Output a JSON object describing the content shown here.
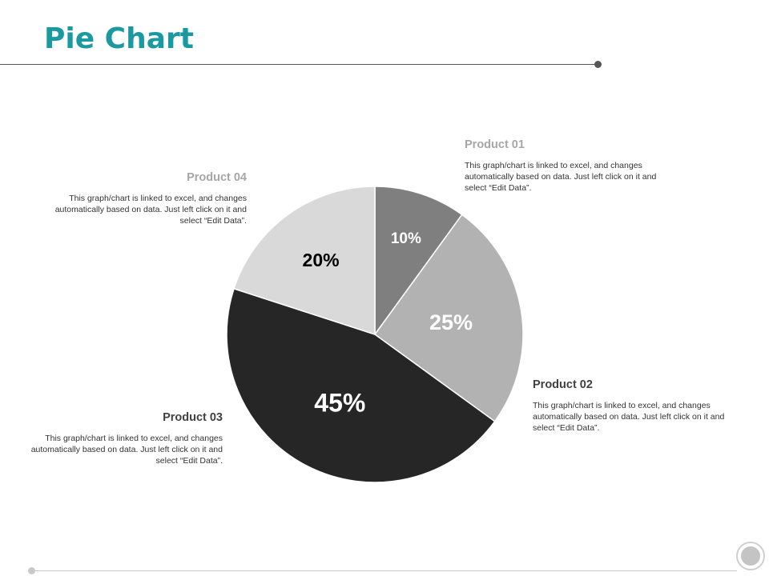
{
  "title": "Pie Chart",
  "colors": {
    "title": "#1a9aa0",
    "product01": "#7f7f7f",
    "product02": "#b2b2b2",
    "product03": "#262626",
    "product04": "#d9d9d9",
    "label_light": "#a6a6a6",
    "label_dark": "#404040"
  },
  "chart_data": {
    "type": "pie",
    "categories": [
      "Product 01",
      "Product 02",
      "Product 03",
      "Product 04"
    ],
    "values": [
      10,
      25,
      45,
      20
    ],
    "data_labels": [
      "10%",
      "25%",
      "45%",
      "20%"
    ],
    "start": "12 o'clock",
    "direction": "clockwise"
  },
  "callouts": [
    {
      "name": "Product 01",
      "text": "This graph/chart is linked to excel, and changes automatically based on data. Just left click on it and select “Edit Data”."
    },
    {
      "name": "Product 02",
      "text": "This graph/chart is linked to excel, and changes automatically based on data. Just left click on it and select “Edit Data”."
    },
    {
      "name": "Product 03",
      "text": "This graph/chart is linked to excel, and changes automatically based on data. Just left click on it and select “Edit Data”."
    },
    {
      "name": "Product 04",
      "text": "This graph/chart is linked to excel, and changes automatically based on data. Just left click on it and select “Edit Data”."
    }
  ]
}
